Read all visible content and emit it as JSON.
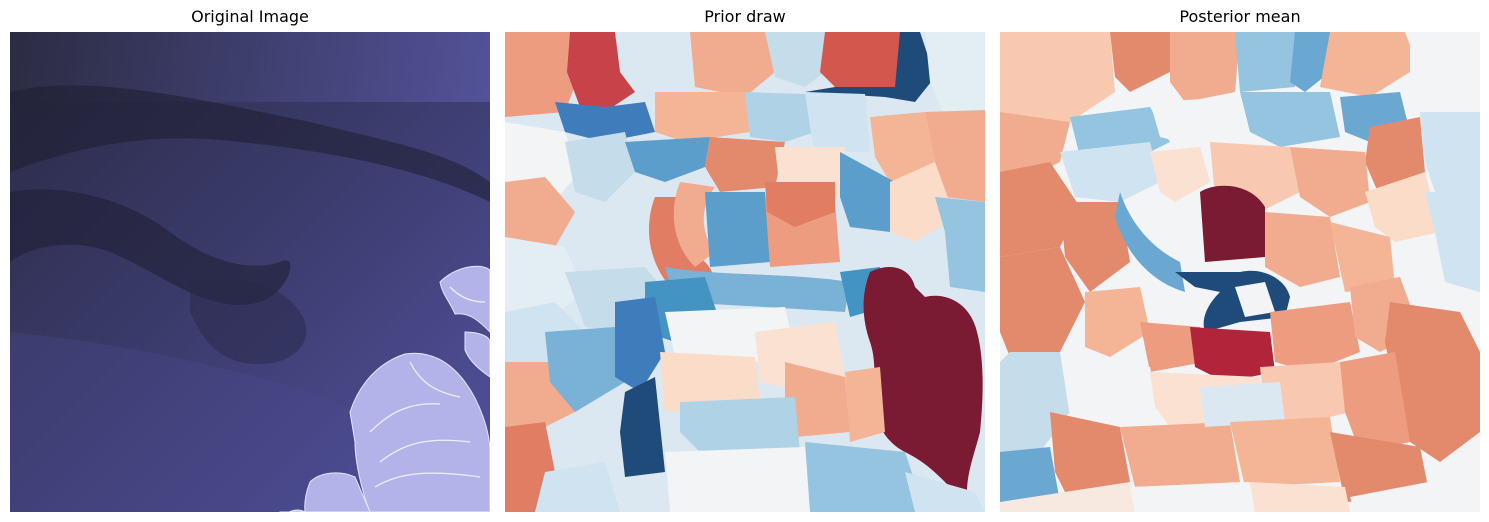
{
  "panels": [
    {
      "title": "Original Image"
    },
    {
      "title": "Prior draw"
    },
    {
      "title": "Posterior mean"
    }
  ],
  "palette": {
    "darkest_red": "#7a1a33",
    "red": "#b2182b",
    "salmon": "#e48a6c",
    "light_salmon": "#f4b597",
    "peach": "#fbdcc9",
    "off_white": "#f3f4f5",
    "light_blue": "#cfe4f0",
    "sky_blue": "#94c4df",
    "blue": "#4393c3",
    "dark_blue": "#1f4b7a",
    "satellite_bg": "#3b3b6a",
    "satellite_land": "#b9b9ee"
  }
}
